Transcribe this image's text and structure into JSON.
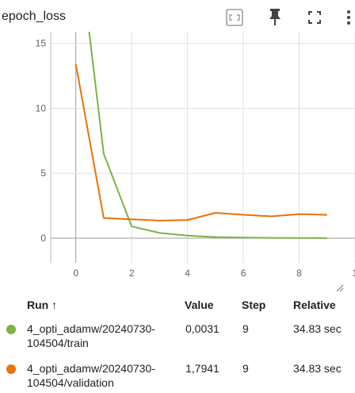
{
  "card": {
    "title": "epoch_loss"
  },
  "toolbar": {
    "fit_icon": "fit-to-data-icon",
    "pin_icon": "pin-icon",
    "fullscreen_icon": "fullscreen-icon",
    "more_icon": "more-vert-icon"
  },
  "chart_data": {
    "type": "line",
    "title": "",
    "xlabel": "",
    "ylabel": "",
    "xlim": [
      -0.9,
      10
    ],
    "ylim": [
      -1.9,
      15.9
    ],
    "x_ticks": [
      "0",
      "2",
      "4",
      "6",
      "8",
      "1"
    ],
    "y_ticks": [
      "0",
      "5",
      "10",
      "15"
    ],
    "grid": true,
    "series": [
      {
        "color": "#7cb342",
        "x": [
          0,
          1,
          2,
          3,
          4,
          5,
          6,
          7,
          8,
          9
        ],
        "y": [
          24.5,
          6.5,
          0.9,
          0.4,
          0.2,
          0.08,
          0.04,
          0.02,
          0.01,
          0.0031
        ]
      },
      {
        "color": "#e8710a",
        "x": [
          0,
          1,
          2,
          3,
          4,
          5,
          6,
          7,
          8,
          9
        ],
        "y": [
          13.4,
          1.55,
          1.45,
          1.35,
          1.4,
          1.95,
          1.8,
          1.68,
          1.85,
          1.7941
        ]
      }
    ]
  },
  "table": {
    "headers": {
      "run": "Run ↑",
      "value": "Value",
      "step": "Step",
      "relative": "Relative"
    },
    "rows": [
      {
        "color": "#7cb342",
        "run": "4_opti_adamw/20240730-\n104504/train",
        "value": "0,0031",
        "step": "9",
        "relative": "34.83 sec"
      },
      {
        "color": "#e8710a",
        "run": "4_opti_adamw/20240730-\n104504/validation",
        "value": "1,7941",
        "step": "9",
        "relative": "34.83 sec"
      }
    ]
  }
}
